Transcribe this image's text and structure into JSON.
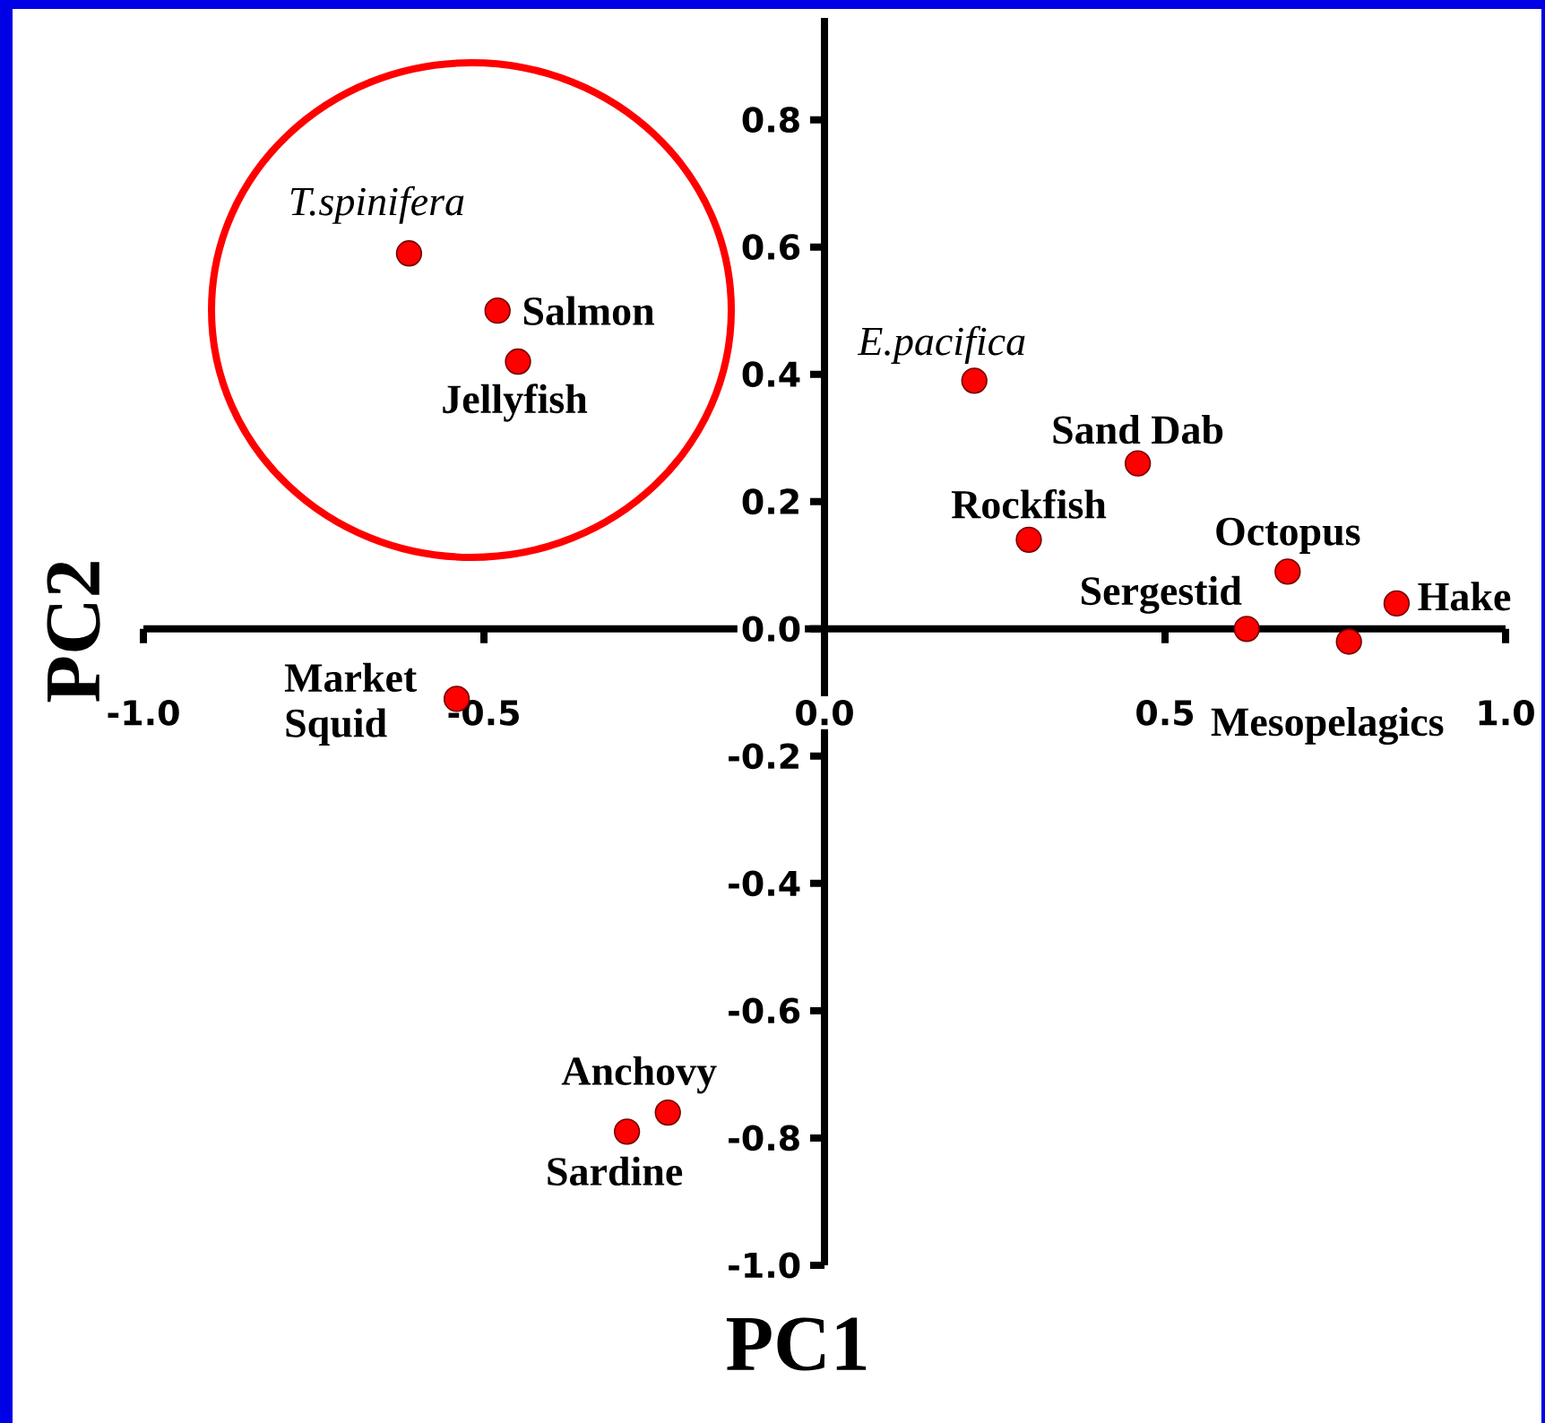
{
  "chart_data": {
    "type": "scatter",
    "xlabel": "PC1",
    "ylabel": "PC2",
    "xlim": [
      -1,
      1
    ],
    "ylim": [
      -1,
      0.96
    ],
    "xticks": [
      {
        "value": -1,
        "label": "-1.0"
      },
      -0.5,
      {
        "value": 0,
        "label": "0.0"
      },
      0.5,
      {
        "value": 1,
        "label": "1.0"
      }
    ],
    "yticks": [
      {
        "value": -1,
        "label": "-1.0"
      },
      -0.8,
      -0.6,
      -0.4,
      -0.2,
      {
        "value": 0,
        "label": "0.0"
      },
      0.2,
      0.4,
      0.6,
      0.8
    ],
    "marker": "circle",
    "series": [
      {
        "name": "T.spinifera",
        "color": "#ff0000",
        "x": [
          -0.61
        ],
        "values": [
          0.59
        ]
      },
      {
        "name": "Salmon",
        "color": "#ff0000",
        "x": [
          -0.48
        ],
        "values": [
          0.5
        ]
      },
      {
        "name": "Jellyfish",
        "color": "#ff0000",
        "x": [
          -0.45
        ],
        "values": [
          0.42
        ]
      },
      {
        "name": "Market Squid",
        "color": "#ff0000",
        "x": [
          -0.54
        ],
        "values": [
          -0.11
        ]
      },
      {
        "name": "E.pacifica",
        "color": "#ff0000",
        "x": [
          0.22
        ],
        "values": [
          0.39
        ]
      },
      {
        "name": "Sand Dab",
        "color": "#ff0000",
        "x": [
          0.46
        ],
        "values": [
          0.26
        ]
      },
      {
        "name": "Rockfish",
        "color": "#ff0000",
        "x": [
          0.3
        ],
        "values": [
          0.14
        ]
      },
      {
        "name": "Octopus",
        "color": "#ff0000",
        "x": [
          0.68
        ],
        "values": [
          0.09
        ]
      },
      {
        "name": "Sergestid",
        "color": "#ff0000",
        "x": [
          0.62
        ],
        "values": [
          0.0
        ]
      },
      {
        "name": "Hake",
        "color": "#ff0000",
        "x": [
          0.84
        ],
        "values": [
          0.04
        ]
      },
      {
        "name": "Mesopelagics",
        "color": "#ff0000",
        "x": [
          0.77
        ],
        "values": [
          -0.02
        ]
      },
      {
        "name": "Anchovy",
        "color": "#ff0000",
        "x": [
          -0.23
        ],
        "values": [
          -0.76
        ]
      },
      {
        "name": "Sardine",
        "color": "#ff0000",
        "x": [
          -0.29
        ],
        "values": [
          -0.79
        ]
      }
    ]
  }
}
